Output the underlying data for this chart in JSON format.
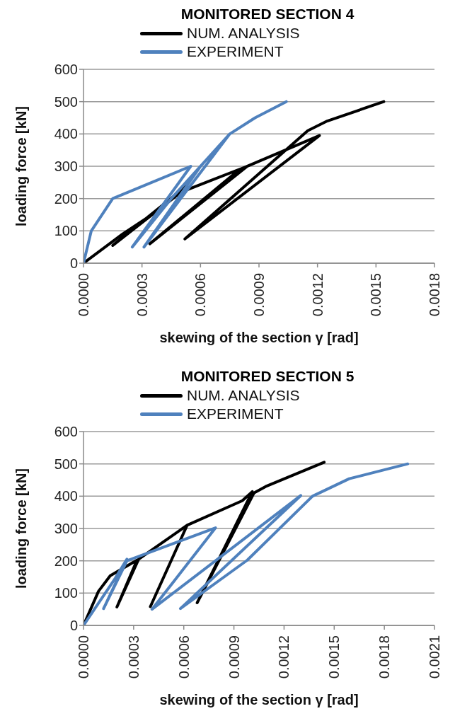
{
  "chart_data": [
    {
      "type": "line",
      "title": "MONITORED SECTION 4",
      "xlabel": "skewing of the section γ [rad]",
      "ylabel": "loading force [kN]",
      "xlim": [
        0,
        0.0018
      ],
      "ylim": [
        0,
        600
      ],
      "xticks": [
        {
          "value": 0,
          "label": "0.0000"
        },
        {
          "value": 0.0003,
          "label": "0.0003"
        },
        {
          "value": 0.0006,
          "label": "0.0006"
        },
        {
          "value": 0.0009,
          "label": "0.0009"
        },
        {
          "value": 0.0012,
          "label": "0.0012"
        },
        {
          "value": 0.0015,
          "label": "0.0015"
        },
        {
          "value": 0.0018,
          "label": "0.0018"
        }
      ],
      "yticks": [
        0,
        100,
        200,
        300,
        400,
        500,
        600
      ],
      "grid": "y",
      "legend": "top",
      "marker": "none",
      "line_style": "solid",
      "series": [
        {
          "name": "NUM. ANALYSIS",
          "color": "#000000",
          "x": [
            0,
            0.0002,
            0.0004,
            0.00053,
            0.00015,
            0.0005,
            0.00084,
            0.00034,
            0.0008,
            0.00121,
            0.00052,
            0.00115,
            0.00125,
            0.00154
          ],
          "values": [
            0,
            90,
            170,
            240,
            55,
            220,
            300,
            60,
            290,
            395,
            75,
            410,
            440,
            500
          ]
        },
        {
          "name": "EXPERIMENT",
          "color": "#4f81bd",
          "x": [
            0,
            4e-05,
            0.00015,
            0.00055,
            0.00025,
            0.00045,
            0.00075,
            0.00031,
            0.0006,
            0.00075,
            0.00088,
            0.00104
          ],
          "values": [
            0,
            100,
            200,
            300,
            50,
            200,
            400,
            50,
            300,
            400,
            450,
            500
          ]
        }
      ]
    },
    {
      "type": "line",
      "title": "MONITORED SECTION 5",
      "xlabel": "skewing of the section γ [rad]",
      "ylabel": "loading force [kN]",
      "xlim": [
        0,
        0.0021
      ],
      "ylim": [
        0,
        600
      ],
      "xticks": [
        {
          "value": 0,
          "label": "0.0000"
        },
        {
          "value": 0.0003,
          "label": "0.0003"
        },
        {
          "value": 0.0006,
          "label": "0.0006"
        },
        {
          "value": 0.0009,
          "label": "0.0009"
        },
        {
          "value": 0.0012,
          "label": "0.0012"
        },
        {
          "value": 0.0015,
          "label": "0.0015"
        },
        {
          "value": 0.0018,
          "label": "0.0018"
        },
        {
          "value": 0.0021,
          "label": "0.0021"
        }
      ],
      "yticks": [
        0,
        100,
        200,
        300,
        400,
        500,
        600
      ],
      "grid": "y",
      "legend": "top",
      "marker": "none",
      "line_style": "solid",
      "series": [
        {
          "name": "NUM. ANALYSIS",
          "color": "#000000",
          "x": [
            0,
            9e-05,
            0.00016,
            0.00032,
            0.0002,
            0.00033,
            0.00062,
            0.0004,
            0.00062,
            0.00095,
            0.00101,
            0.00068,
            0.00102,
            0.00109,
            0.00144
          ],
          "values": [
            0,
            106,
            154,
            202,
            57,
            205,
            310,
            58,
            310,
            386,
            414,
            70,
            410,
            430,
            505
          ]
        },
        {
          "name": "EXPERIMENT",
          "color": "#4f81bd",
          "x": [
            0,
            0.00019,
            0.00026,
            0.00012,
            0.00026,
            0.00079,
            0.00041,
            0.0013,
            0.00058,
            0.00098,
            0.00137,
            0.00159,
            0.00194
          ],
          "values": [
            0,
            146,
            205,
            52,
            200,
            302,
            50,
            402,
            52,
            202,
            400,
            454,
            500
          ]
        }
      ]
    }
  ]
}
